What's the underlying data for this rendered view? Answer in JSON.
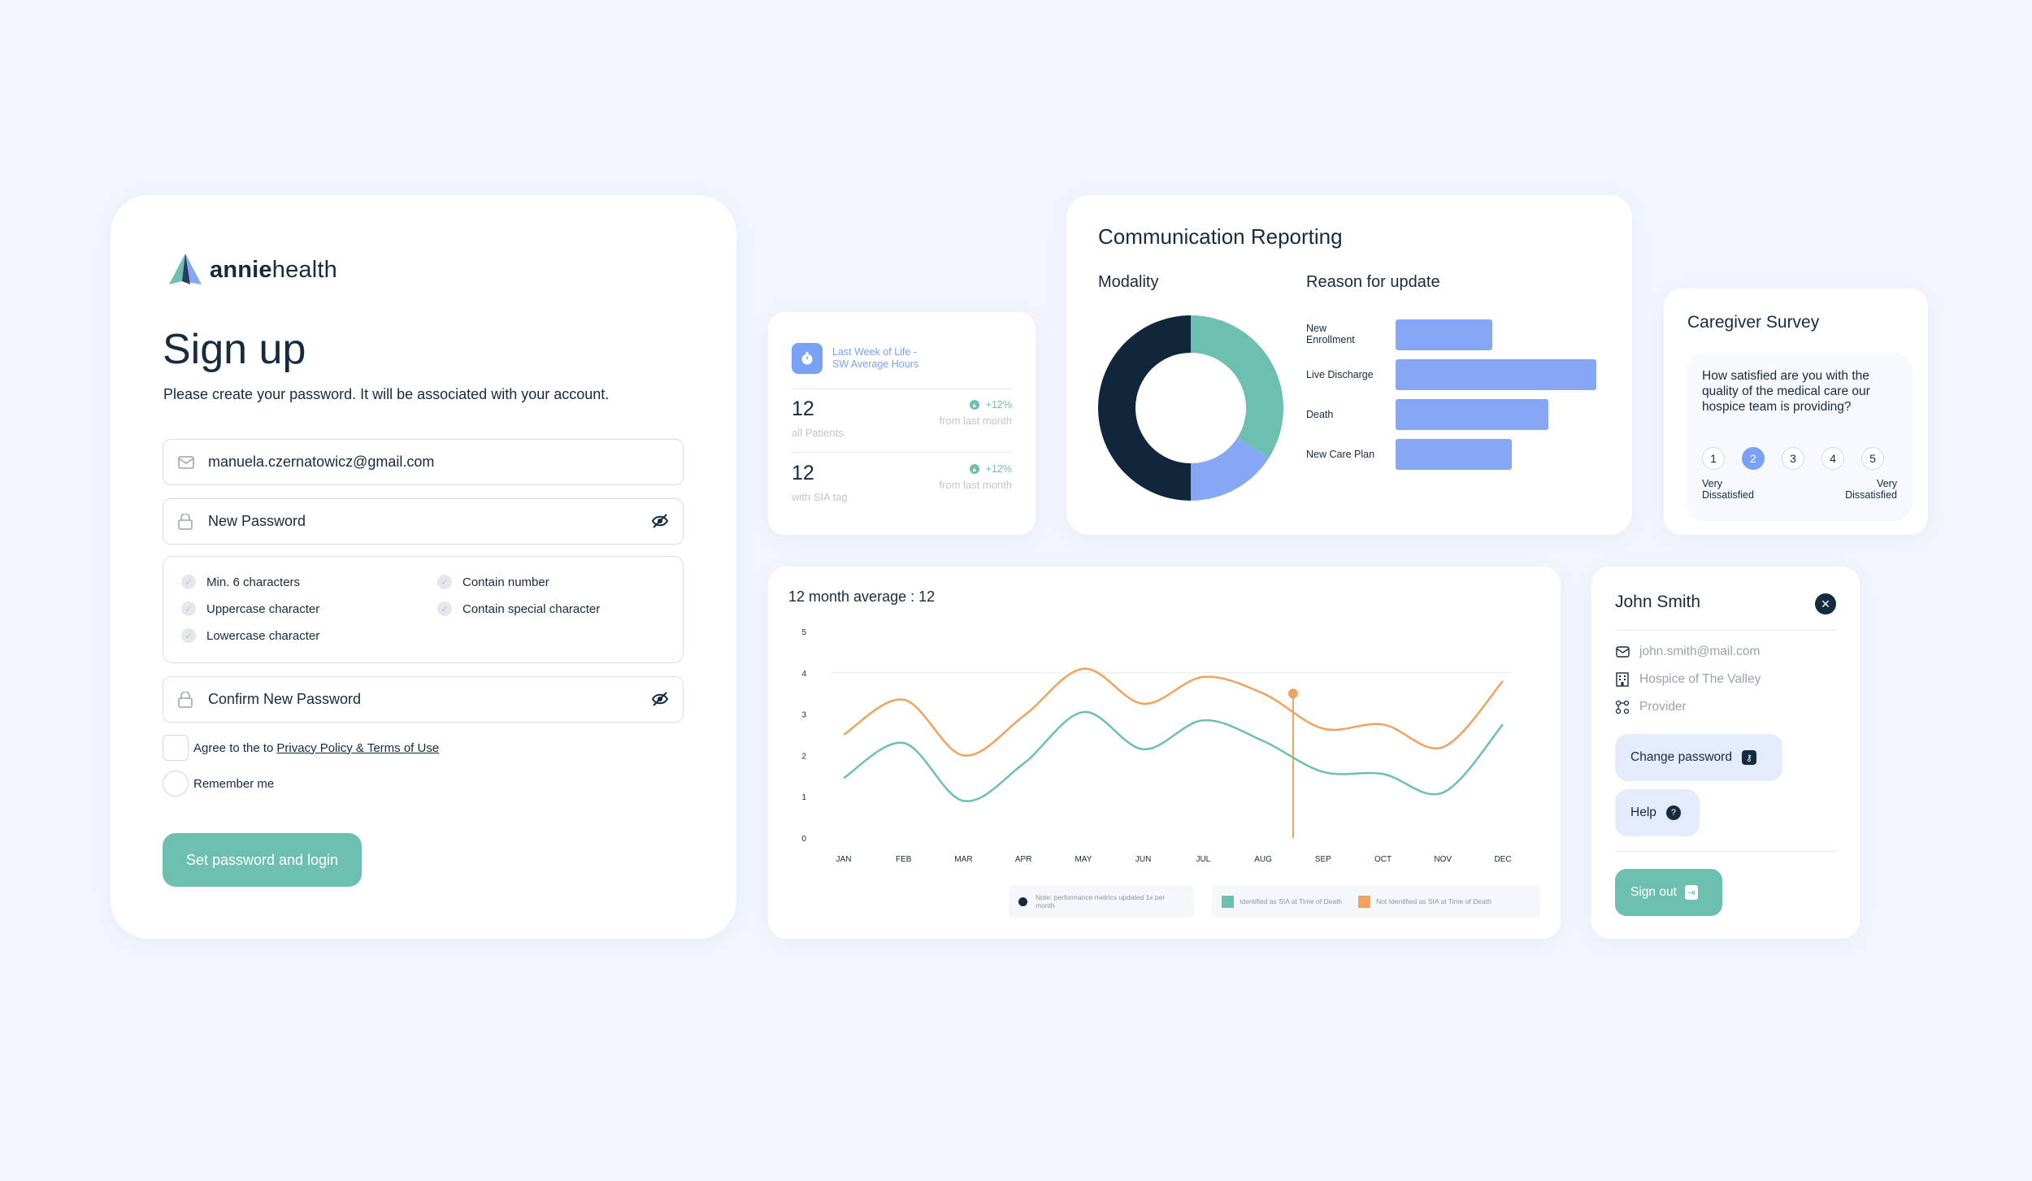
{
  "signup": {
    "brand_bold": "annie",
    "brand_light": "health",
    "title": "Sign up",
    "subtitle": "Please create your password. It will be associated with your account.",
    "email_value": "manuela.czernatowicz@gmail.com",
    "new_password_placeholder": "New Password",
    "confirm_password_placeholder": "Confirm New Password",
    "requirements": [
      "Min. 6 characters",
      "Uppercase character",
      "Lowercase character",
      "Contain number",
      "Contain special character"
    ],
    "agree_text": "Agree to the to",
    "agree_link": "Privacy Policy & Terms of Use",
    "remember_label": "Remember me",
    "submit_label": "Set password and login",
    "colors": {
      "accent": "#6dbfb0",
      "text": "#152b40"
    }
  },
  "stats": {
    "heading_line1": "Last Week of Life -",
    "heading_line2": "SW Average Hours",
    "rows": [
      {
        "value": "12",
        "label": "all Patients",
        "change": "+12%",
        "from": "from last month"
      },
      {
        "value": "12",
        "label": "with SIA tag",
        "change": "+12%",
        "from": "from last month"
      }
    ]
  },
  "comm": {
    "title": "Communication Reporting",
    "modality_title": "Modality",
    "reason_title": "Reason for update"
  },
  "caregiver": {
    "title": "Caregiver Survey",
    "question": "How satisfied are you with the quality of the medical care our hospice team is providing?",
    "options": [
      "1",
      "2",
      "3",
      "4",
      "5"
    ],
    "selected": "2",
    "low_label_1": "Very",
    "low_label_2": "Dissatisfied",
    "high_label_1": "Very",
    "high_label_2": "Dissatisfied"
  },
  "line": {
    "title": "12 month average : 12",
    "note": "Note: performance metrics updated 1x per month",
    "legend_teal": "Identified as SIA at Time of Death",
    "legend_orange": "Not Identified as SIA at Time of Death"
  },
  "profile": {
    "name": "John Smith",
    "email": "john.smith@mail.com",
    "org": "Hospice of The Valley",
    "role": "Provider",
    "change_password": "Change password",
    "help": "Help",
    "sign_out": "Sign out"
  },
  "chart_data": [
    {
      "type": "pie",
      "title": "Modality",
      "categories": [
        "Teal segment",
        "Blue segment",
        "Dark segment"
      ],
      "values": [
        34,
        16,
        50
      ],
      "colors": [
        "#6dbfb0",
        "#85a7f6",
        "#10263a"
      ]
    },
    {
      "type": "bar",
      "orientation": "horizontal",
      "title": "Reason for update",
      "categories": [
        "New Enrollment",
        "Live Discharge",
        "Death",
        "New Care Plan"
      ],
      "values": [
        48,
        100,
        76,
        58
      ],
      "color": "#85a7f6"
    },
    {
      "type": "line",
      "title": "12 month average : 12",
      "categories": [
        "JAN",
        "FEB",
        "MAR",
        "APR",
        "MAY",
        "JUN",
        "JUL",
        "AUG",
        "SEP",
        "OCT",
        "NOV",
        "DEC"
      ],
      "ylim": [
        0,
        5
      ],
      "yticks": [
        "0",
        "1",
        "2",
        "3",
        "4",
        "5"
      ],
      "series": [
        {
          "name": "Identified as SIA at Time of Death",
          "color": "#6dbfb0",
          "values": [
            1.45,
            2.3,
            0.9,
            1.8,
            3.05,
            2.15,
            2.85,
            2.35,
            1.6,
            1.55,
            1.1,
            2.75
          ]
        },
        {
          "name": "Not Identified as SIA at Time of Death",
          "color": "#f0a25f",
          "values": [
            2.5,
            3.35,
            2.0,
            2.95,
            4.1,
            3.25,
            3.9,
            3.5,
            2.65,
            2.75,
            2.2,
            3.8
          ]
        }
      ],
      "highlight_index": 7.5,
      "highlight_value": 3.5
    }
  ]
}
